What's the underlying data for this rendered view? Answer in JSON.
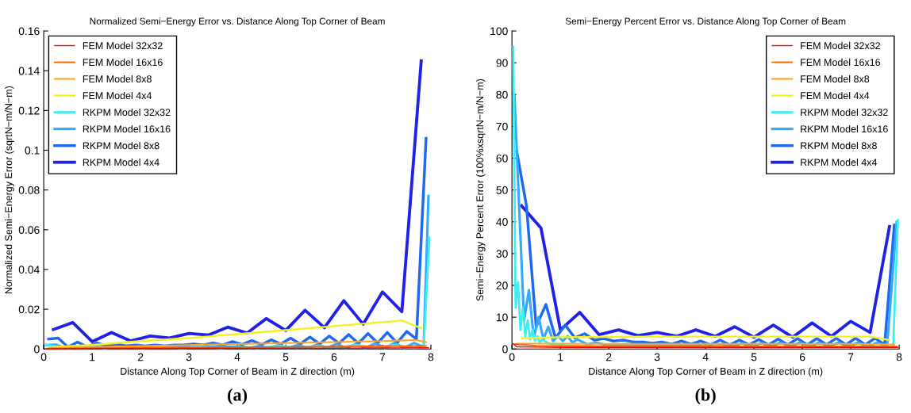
{
  "chart_data": [
    {
      "type": "line",
      "title": "Normalized Semi−Energy Error vs. Distance Along Top Corner of Beam",
      "xlabel": "Distance Along Top Corner of Beam in Z direction (m)",
      "ylabel": "Normalized Semi−Energy Error (sqrtN−m/N−m)",
      "annotations": [
        "(a)"
      ],
      "xlim": [
        0,
        8
      ],
      "ylim": [
        0,
        0.16
      ],
      "xticks": [
        0,
        1,
        2,
        3,
        4,
        5,
        6,
        7,
        8
      ],
      "yticks": [
        0,
        0.02,
        0.04,
        0.06,
        0.08,
        0.1,
        0.12,
        0.14,
        0.16
      ],
      "grid": false,
      "legend": "top left",
      "marker": "none",
      "line_style": "solid",
      "series": [
        {
          "name": "FEM Model 32x32",
          "color": "#ff0000",
          "x": [
            0.05,
            1,
            2,
            3,
            4,
            5,
            6,
            7,
            7.95
          ],
          "values": [
            0.0001,
            0.0002,
            0.0002,
            0.0003,
            0.0003,
            0.0004,
            0.0004,
            0.0005,
            0.0006
          ]
        },
        {
          "name": "FEM Model 16x16",
          "color": "#ff5a00",
          "x": [
            0.05,
            1,
            2,
            3,
            4,
            5,
            6,
            7,
            7.9
          ],
          "values": [
            0.0002,
            0.0004,
            0.0006,
            0.0007,
            0.0009,
            0.001,
            0.0012,
            0.0014,
            0.0015
          ]
        },
        {
          "name": "FEM Model 8x8",
          "color": "#ffa51e",
          "x": [
            0.1,
            1,
            2,
            3,
            4,
            5,
            6,
            7,
            7.7,
            7.9
          ],
          "values": [
            0.0005,
            0.001,
            0.0015,
            0.002,
            0.0025,
            0.003,
            0.0035,
            0.004,
            0.0045,
            0.0035
          ]
        },
        {
          "name": "FEM Model 4x4",
          "color": "#f5f01e",
          "x": [
            0.2,
            1,
            2,
            3,
            4,
            5,
            6,
            7,
            7.4,
            7.8
          ],
          "values": [
            0.001,
            0.002,
            0.004,
            0.0055,
            0.0075,
            0.0095,
            0.0115,
            0.0135,
            0.0143,
            0.0105
          ]
        },
        {
          "name": "RKPM Model 32x32",
          "color": "#3cf0f0",
          "x": [
            0.05,
            0.45,
            0.85,
            1.25,
            1.65,
            2.05,
            2.45,
            2.85,
            3.25,
            3.65,
            4.05,
            4.45,
            4.85,
            5.25,
            5.65,
            6.05,
            6.45,
            6.85,
            7.25,
            7.65,
            7.85,
            7.97
          ],
          "values": [
            0.002,
            0.0005,
            0.001,
            0.0005,
            0.001,
            0.0005,
            0.001,
            0.0005,
            0.001,
            0.0005,
            0.001,
            0.0005,
            0.0015,
            0.0005,
            0.0015,
            0.0005,
            0.002,
            0.0005,
            0.002,
            0.0005,
            0.001,
            0.056
          ]
        },
        {
          "name": "RKPM Model 16x16",
          "color": "#32aaff",
          "x": [
            0.05,
            0.25,
            0.45,
            0.65,
            0.85,
            1.05,
            1.25,
            1.45,
            1.65,
            1.85,
            2.05,
            2.45,
            2.85,
            3.25,
            3.65,
            4.05,
            4.25,
            4.45,
            4.65,
            4.85,
            5.05,
            5.25,
            5.45,
            5.65,
            5.85,
            6.05,
            6.25,
            6.45,
            6.65,
            6.85,
            7.05,
            7.25,
            7.45,
            7.65,
            7.85,
            7.95
          ],
          "values": [
            0.002,
            0.0022,
            0.0005,
            0.0015,
            0.0005,
            0.0015,
            0.0005,
            0.001,
            0.0005,
            0.001,
            0.0008,
            0.001,
            0.001,
            0.001,
            0.0012,
            0.0012,
            0.0005,
            0.0015,
            0.0005,
            0.002,
            0.0005,
            0.002,
            0.0005,
            0.0022,
            0.0005,
            0.0025,
            0.0005,
            0.0025,
            0.0005,
            0.0028,
            0.0005,
            0.003,
            0.0005,
            0.003,
            0.001,
            0.077
          ]
        },
        {
          "name": "RKPM Model 8x8",
          "color": "#2068f0",
          "x": [
            0.1,
            0.3,
            0.5,
            0.7,
            0.9,
            1.1,
            1.3,
            1.5,
            1.7,
            1.9,
            2.1,
            2.3,
            2.5,
            2.7,
            2.9,
            3.1,
            3.3,
            3.5,
            3.7,
            3.9,
            4.1,
            4.3,
            4.5,
            4.7,
            4.9,
            5.1,
            5.3,
            5.5,
            5.7,
            5.9,
            6.1,
            6.3,
            6.5,
            6.7,
            6.9,
            7.1,
            7.3,
            7.5,
            7.7,
            7.9
          ],
          "values": [
            0.005,
            0.0055,
            0.001,
            0.0035,
            0.001,
            0.003,
            0.0015,
            0.0025,
            0.0015,
            0.002,
            0.0015,
            0.002,
            0.0015,
            0.002,
            0.002,
            0.0025,
            0.002,
            0.003,
            0.002,
            0.0037,
            0.0022,
            0.0042,
            0.0022,
            0.0046,
            0.0025,
            0.0055,
            0.0025,
            0.006,
            0.0025,
            0.0065,
            0.0028,
            0.0073,
            0.0028,
            0.0078,
            0.003,
            0.0083,
            0.003,
            0.0088,
            0.005,
            0.106
          ]
        },
        {
          "name": "RKPM Model 4x4",
          "color": "#2020e6",
          "x": [
            0.2,
            0.6,
            1.0,
            1.4,
            1.8,
            2.2,
            2.6,
            3.0,
            3.4,
            3.8,
            4.2,
            4.6,
            5.0,
            5.4,
            5.8,
            6.2,
            6.6,
            7.0,
            7.4,
            7.8
          ],
          "values": [
            0.0098,
            0.0133,
            0.0037,
            0.0083,
            0.004,
            0.0065,
            0.0055,
            0.0078,
            0.007,
            0.011,
            0.008,
            0.0153,
            0.0093,
            0.0195,
            0.0107,
            0.0243,
            0.0125,
            0.0287,
            0.0188,
            0.145
          ]
        }
      ]
    },
    {
      "type": "line",
      "title": "Semi−Energy Percent Error vs. Distance Along Top Corner of Beam",
      "xlabel": "Distance Along Top Corner of Beam in Z direction (m)",
      "ylabel": "Semi−Energy Percent Error (100%xsqrtN−m/N−m)",
      "annotations": [
        "(b)"
      ],
      "xlim": [
        0,
        8
      ],
      "ylim": [
        0,
        100
      ],
      "xticks": [
        0,
        1,
        2,
        3,
        4,
        5,
        6,
        7,
        8
      ],
      "yticks": [
        0,
        10,
        20,
        30,
        40,
        50,
        60,
        70,
        80,
        90,
        100
      ],
      "grid": false,
      "legend": "top right",
      "marker": "none",
      "line_style": "solid",
      "series": [
        {
          "name": "FEM Model 32x32",
          "color": "#ff0000",
          "x": [
            0.025,
            0.1,
            0.5,
            1,
            2,
            3,
            4,
            5,
            6,
            7,
            7.97
          ],
          "values": [
            1.6,
            0.7,
            0.6,
            0.5,
            0.5,
            0.5,
            0.5,
            0.5,
            0.5,
            0.5,
            0.5
          ]
        },
        {
          "name": "FEM Model 16x16",
          "color": "#ff5a00",
          "x": [
            0.05,
            0.5,
            1,
            2,
            3,
            4,
            5,
            6,
            7,
            7.95
          ],
          "values": [
            1.5,
            1,
            0.9,
            0.8,
            0.8,
            0.8,
            0.8,
            0.8,
            0.8,
            0.8
          ]
        },
        {
          "name": "FEM Model 8x8",
          "color": "#ffa51e",
          "x": [
            0.1,
            1,
            2,
            3,
            4,
            5,
            6,
            7,
            7.9
          ],
          "values": [
            1.7,
            1.7,
            1.6,
            1.6,
            1.6,
            1.6,
            1.6,
            1.6,
            1.4
          ]
        },
        {
          "name": "FEM Model 4x4",
          "color": "#f5f01e",
          "x": [
            0.2,
            1,
            2,
            3,
            4,
            5,
            6,
            7,
            7.4,
            7.8
          ],
          "values": [
            3.4,
            3.7,
            3.8,
            3.9,
            3.9,
            3.9,
            3.9,
            3.9,
            3.9,
            2.8
          ]
        },
        {
          "name": "RKPM Model 32x32",
          "color": "#3cf0f0",
          "x": [
            0.025,
            0.075,
            0.125,
            0.175,
            0.225,
            0.275,
            0.325,
            0.375,
            0.425,
            0.475,
            0.525,
            0.575,
            0.625,
            0.725,
            0.825,
            0.925,
            1.125,
            1.525,
            1.925,
            2.525,
            3.125,
            3.725,
            4.325,
            4.925,
            5.525,
            6.125,
            6.725,
            7.325,
            7.875,
            7.975
          ],
          "values": [
            95,
            13,
            21,
            6,
            13,
            4,
            9,
            3,
            6,
            2.5,
            4,
            2,
            3,
            2,
            1.5,
            1.5,
            1,
            1,
            0.8,
            0.8,
            0.8,
            0.8,
            0.5,
            0.8,
            0.5,
            0.8,
            0.5,
            0.8,
            0.5,
            40.5
          ]
        },
        {
          "name": "RKPM Model 16x16",
          "color": "#32aaff",
          "x": [
            0.05,
            0.15,
            0.25,
            0.35,
            0.45,
            0.55,
            0.65,
            0.75,
            0.85,
            0.95,
            1.05,
            1.15,
            1.25,
            1.35,
            1.55,
            1.75,
            1.95,
            2.35,
            2.75,
            3.15,
            3.55,
            3.95,
            4.35,
            4.55,
            4.75,
            4.95,
            5.15,
            5.35,
            5.55,
            5.75,
            5.95,
            6.15,
            6.35,
            6.55,
            6.75,
            6.95,
            7.15,
            7.35,
            7.55,
            7.75,
            7.95
          ],
          "values": [
            80,
            44,
            9,
            18.5,
            3.5,
            10,
            3,
            7,
            2.5,
            4,
            2.5,
            4,
            2,
            3,
            1.5,
            2,
            1.2,
            1.5,
            1.2,
            1.5,
            1.2,
            1.5,
            1.5,
            0.8,
            1.8,
            0.8,
            1.8,
            0.8,
            2,
            0.8,
            2,
            0.8,
            2,
            0.8,
            2,
            0.8,
            2,
            0.8,
            2,
            0.8,
            40
          ]
        },
        {
          "name": "RKPM Model 8x8",
          "color": "#2068f0",
          "x": [
            0.1,
            0.3,
            0.5,
            0.7,
            0.9,
            1.1,
            1.3,
            1.5,
            1.7,
            1.9,
            2.1,
            2.3,
            2.5,
            2.7,
            2.9,
            3.1,
            3.3,
            3.5,
            3.7,
            3.9,
            4.1,
            4.3,
            4.5,
            4.7,
            4.9,
            5.1,
            5.3,
            5.5,
            5.7,
            5.9,
            6.1,
            6.3,
            6.5,
            6.7,
            6.9,
            7.1,
            7.3,
            7.5,
            7.7,
            7.9
          ],
          "values": [
            62,
            45,
            7,
            14,
            3.5,
            7.5,
            3.5,
            4.8,
            2.8,
            3.3,
            2.5,
            2.8,
            2.2,
            2.2,
            1.8,
            2.2,
            1.5,
            2.5,
            1.5,
            2.5,
            1.3,
            2.8,
            1.3,
            2.8,
            1.3,
            3,
            1.3,
            3.1,
            1.3,
            3.3,
            1.3,
            3.3,
            1.3,
            3.4,
            1.3,
            3.4,
            1.3,
            3.4,
            1.3,
            39
          ]
        },
        {
          "name": "RKPM Model 4x4",
          "color": "#2020e6",
          "x": [
            0.2,
            0.6,
            1.0,
            1.4,
            1.8,
            2.2,
            2.6,
            3.0,
            3.4,
            3.8,
            4.2,
            4.6,
            5.0,
            5.4,
            5.8,
            6.2,
            6.6,
            7.0,
            7.4,
            7.8
          ],
          "values": [
            45,
            38,
            6,
            11.5,
            4.5,
            6,
            4.2,
            5.2,
            4,
            6,
            4,
            7,
            3.7,
            7.5,
            3.7,
            8.2,
            4,
            8.7,
            5.2,
            38.5
          ]
        }
      ]
    }
  ]
}
